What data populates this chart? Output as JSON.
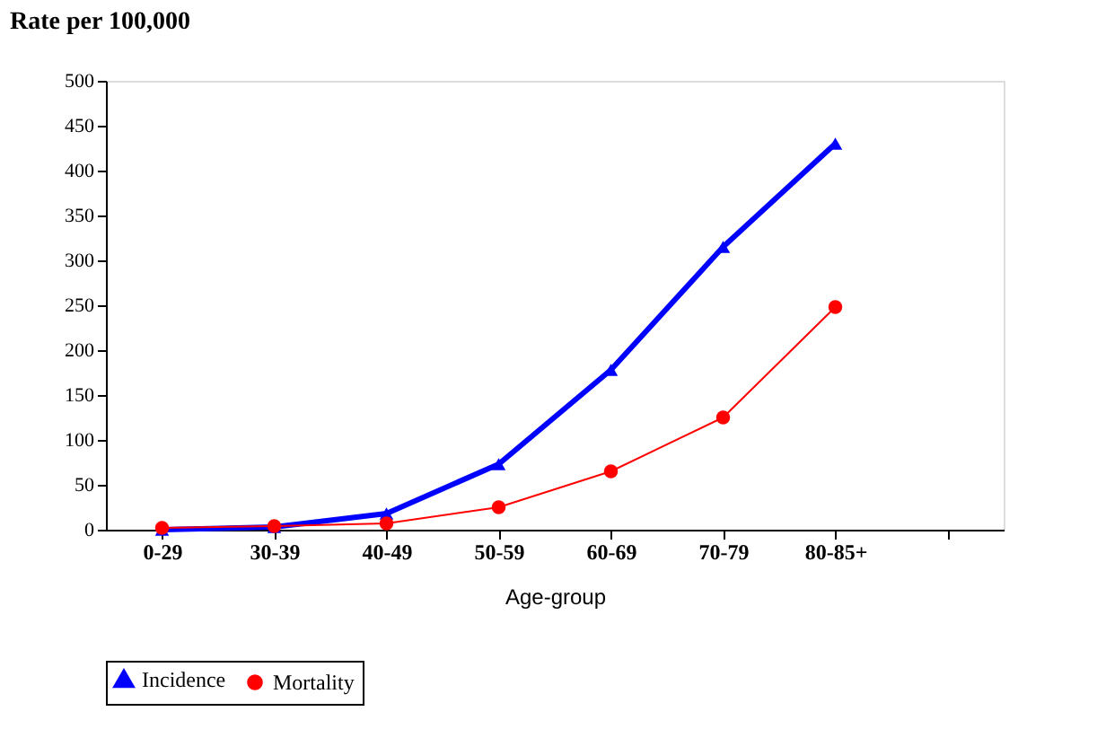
{
  "chart_data": {
    "type": "line",
    "title": "Rate per 100,000",
    "xlabel": "Age-group",
    "categories": [
      "0-29",
      "30-39",
      "40-49",
      "50-59",
      "60-69",
      "70-79",
      "80-85+",
      null
    ],
    "series": [
      {
        "name": "Incidence",
        "color": "#0000ff",
        "marker": "triangle",
        "values": [
          0,
          3,
          18,
          73,
          178,
          315,
          430,
          null
        ]
      },
      {
        "name": "Mortality",
        "color": "#ff0000",
        "marker": "circle",
        "values": [
          2,
          4,
          7,
          25,
          65,
          125,
          248,
          null
        ]
      }
    ],
    "ylim": [
      0,
      500
    ],
    "yticks": [
      0,
      50,
      100,
      150,
      200,
      250,
      300,
      350,
      400,
      450,
      500
    ],
    "grid": false,
    "legend": "bottom",
    "line_style": "solid"
  }
}
